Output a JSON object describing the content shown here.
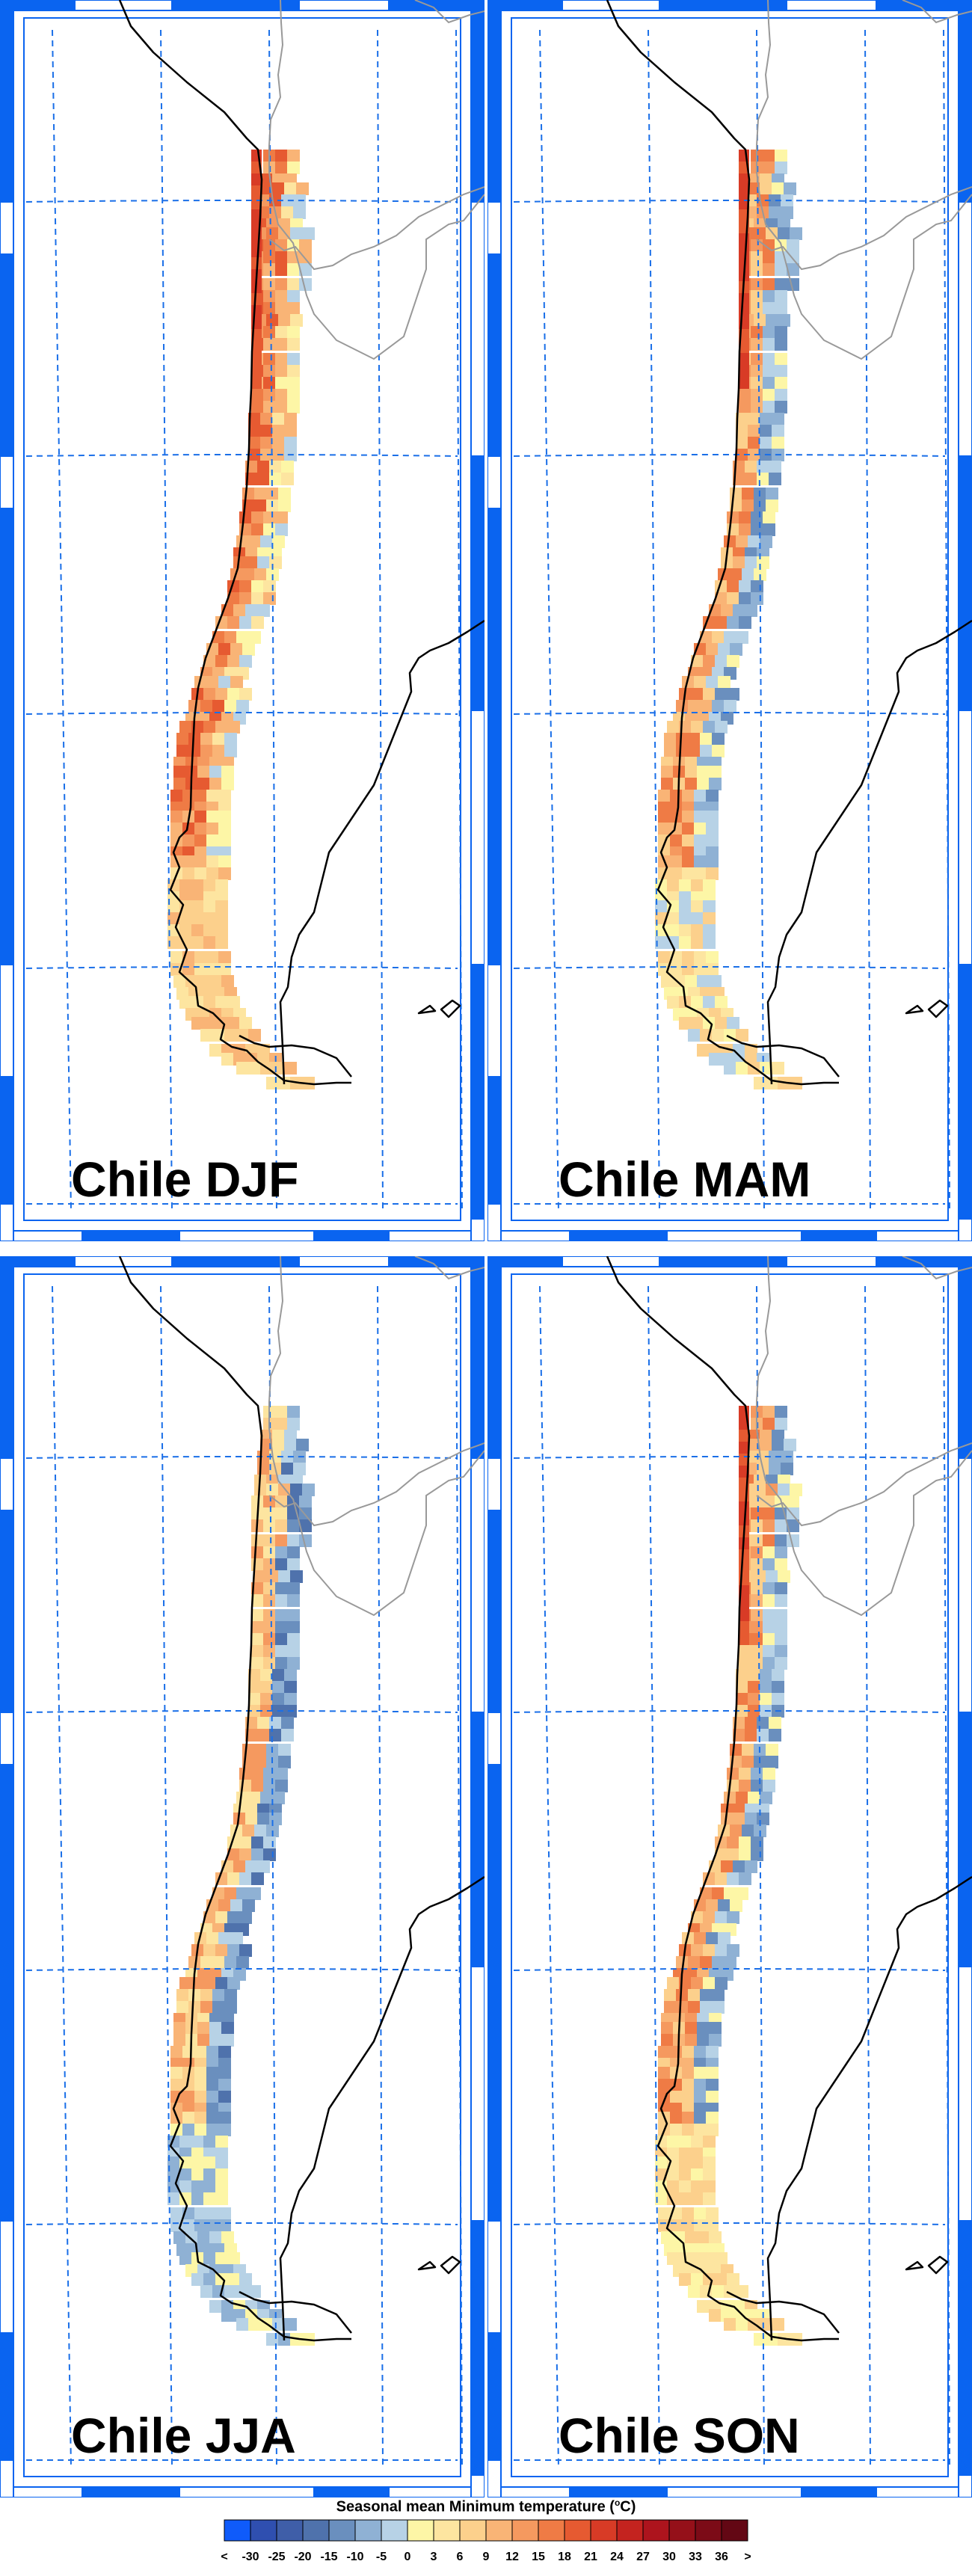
{
  "panels": [
    {
      "label": "Chile DJF",
      "season": "DJF"
    },
    {
      "label": "Chile MAM",
      "season": "MAM"
    },
    {
      "label": "Chile JJA",
      "season": "JJA"
    },
    {
      "label": "Chile SON",
      "season": "SON"
    }
  ],
  "legend": {
    "title_main": "Seasonal mean Minimum temperature (",
    "title_unit_sup": "o",
    "title_unit": "C)",
    "tick_labels": [
      "<",
      "-30",
      "-25",
      "-20",
      "-15",
      "-10",
      "-5",
      "0",
      "3",
      "6",
      "9",
      "12",
      "15",
      "18",
      "21",
      "24",
      "27",
      "30",
      "33",
      "36",
      ">"
    ],
    "colors": [
      "#0f5bfa",
      "#2f4fb0",
      "#3f5ea8",
      "#4f72ac",
      "#6a8fbe",
      "#8fb1d4",
      "#b7d2e6",
      "#fdf6a6",
      "#fde5a0",
      "#fcd08c",
      "#f9b476",
      "#f5995f",
      "#ef7b45",
      "#e65a31",
      "#d83b26",
      "#c4231f",
      "#ad141d",
      "#951019",
      "#7c0b17",
      "#630714"
    ]
  },
  "map_colors": {
    "frame_blue": "#0a64f0",
    "grid_blue": "#1a6fe8",
    "border_gray": "#999999"
  }
}
